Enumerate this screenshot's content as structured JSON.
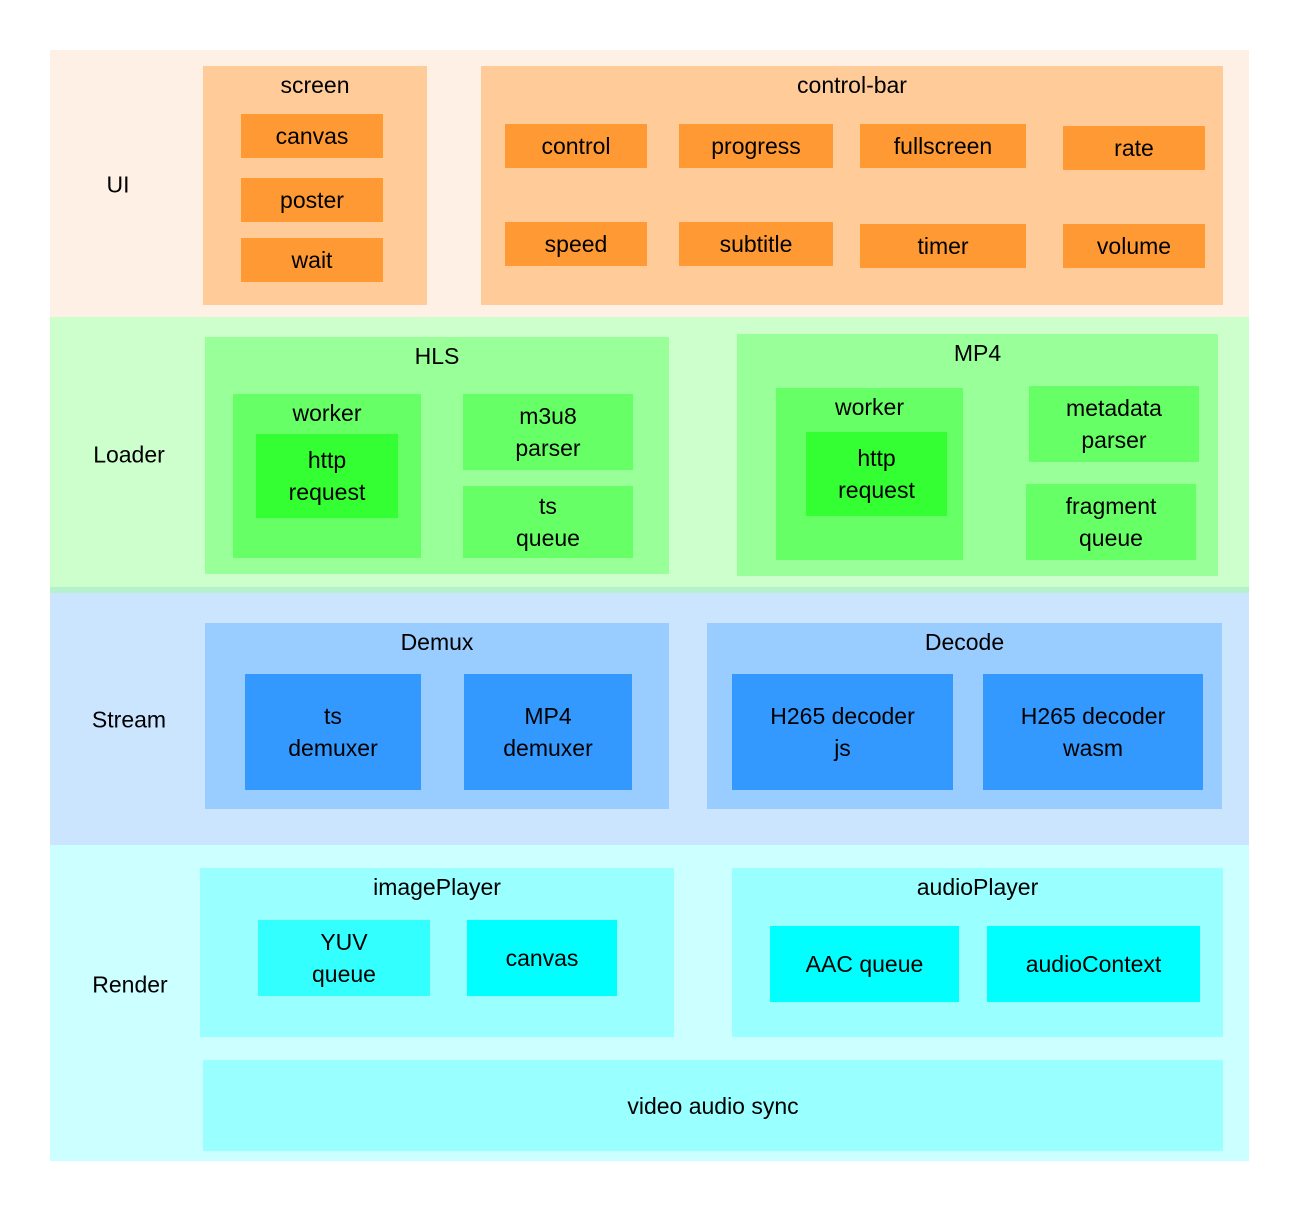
{
  "colors": {
    "ui_band": "#fff0e5",
    "loader_band": "#ccffcc",
    "stream_band": "#cce5ff",
    "render_band": "#ccffff",
    "ui_item": "#ff9933",
    "loader_item": "#66ff66",
    "stream_item": "#3399ff",
    "render_item": "#00ffff"
  },
  "ui": {
    "label": "UI",
    "screen": {
      "title": "screen",
      "items": [
        "canvas",
        "poster",
        "wait"
      ]
    },
    "control_bar": {
      "title": "control-bar",
      "items": [
        "control",
        "progress",
        "fullscreen",
        "rate",
        "speed",
        "subtitle",
        "timer",
        "volume"
      ]
    }
  },
  "loader": {
    "label": "Loader",
    "hls": {
      "title": "HLS",
      "worker": "worker",
      "http": "http\nrequest",
      "m3u8": "m3u8\nparser",
      "ts_queue": "ts\nqueue"
    },
    "mp4": {
      "title": "MP4",
      "worker": "worker",
      "http": "http\nrequest",
      "metadata": "metadata\nparser",
      "fragment": "fragment\nqueue"
    }
  },
  "stream": {
    "label": "Stream",
    "demux": {
      "title": "Demux",
      "items": [
        "ts\ndemuxer",
        "MP4\ndemuxer"
      ]
    },
    "decode": {
      "title": "Decode",
      "items": [
        "H265 decoder\njs",
        "H265 decoder\nwasm"
      ]
    }
  },
  "render": {
    "label": "Render",
    "image_player": {
      "title": "imagePlayer",
      "items": [
        "YUV\nqueue",
        "canvas"
      ]
    },
    "audio_player": {
      "title": "audioPlayer",
      "items": [
        "AAC queue",
        "audioContext"
      ]
    },
    "sync": "video audio sync"
  }
}
